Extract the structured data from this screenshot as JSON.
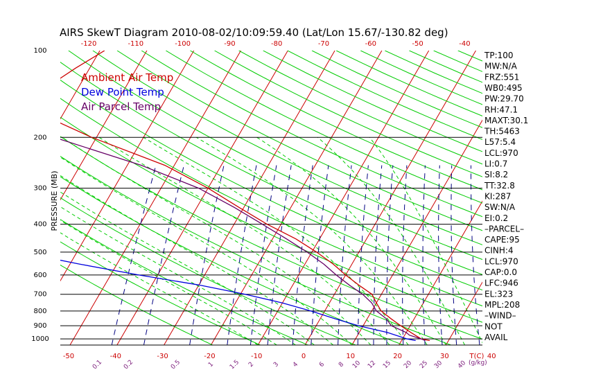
{
  "chart_data": {
    "type": "line",
    "title": "AIRS SkewT Diagram 2010-08-02/10:09:59.40 (Lat/Lon 15.67/-130.82 deg)",
    "ylabel": "PRESSURE (MB)",
    "x_unit_label": "T(C)",
    "mixing_ratio_unit_label": "(g/kg)",
    "y_scale": "log",
    "ylim": [
      1050,
      100
    ],
    "pressure_ticks": [
      100,
      200,
      300,
      400,
      500,
      600,
      700,
      800,
      900,
      1000
    ],
    "top_temp_ticks": [
      -120,
      -110,
      -100,
      -90,
      -80,
      -70,
      -60,
      -50,
      -40
    ],
    "bottom_temp_ticks": [
      -50,
      -40,
      -30,
      -20,
      -10,
      0,
      10,
      20,
      30,
      40
    ],
    "mixing_ratio_ticks": [
      "0.1",
      "0.2",
      "0.5",
      "1",
      "1.5",
      "2",
      "3",
      "4",
      "6",
      "8",
      "10",
      "12",
      "15",
      "20",
      "25",
      "30",
      "40"
    ],
    "legend": [
      {
        "label": "Ambient Air Temp",
        "color": "#cc0000"
      },
      {
        "label": "Dew Point Temp",
        "color": "#0000dd"
      },
      {
        "label": "Air Parcel Temp",
        "color": "#660066"
      }
    ],
    "series": [
      {
        "name": "Ambient Air Temp",
        "color": "#cc0000",
        "points": [
          [
            100,
            -79
          ],
          [
            115,
            -83
          ],
          [
            130,
            -86
          ],
          [
            150,
            -90
          ],
          [
            170,
            -83
          ],
          [
            200,
            -71
          ],
          [
            250,
            -52
          ],
          [
            300,
            -40
          ],
          [
            350,
            -31
          ],
          [
            400,
            -23
          ],
          [
            450,
            -15
          ],
          [
            500,
            -9
          ],
          [
            550,
            -4
          ],
          [
            600,
            0
          ],
          [
            650,
            4
          ],
          [
            700,
            8
          ],
          [
            750,
            10
          ],
          [
            800,
            12
          ],
          [
            850,
            15
          ],
          [
            900,
            18
          ],
          [
            950,
            21
          ],
          [
            1000,
            24
          ],
          [
            1013,
            26
          ]
        ]
      },
      {
        "name": "Dew Point Temp",
        "color": "#0000dd",
        "points": [
          [
            100,
            -130
          ],
          [
            150,
            -132
          ],
          [
            200,
            -124
          ],
          [
            250,
            -111
          ],
          [
            300,
            -106
          ],
          [
            350,
            -105
          ],
          [
            400,
            -104
          ],
          [
            450,
            -87
          ],
          [
            500,
            -72
          ],
          [
            550,
            -58
          ],
          [
            600,
            -44
          ],
          [
            650,
            -30
          ],
          [
            700,
            -19
          ],
          [
            750,
            -10
          ],
          [
            800,
            -3
          ],
          [
            850,
            3
          ],
          [
            900,
            9
          ],
          [
            950,
            16
          ],
          [
            1000,
            21
          ],
          [
            1013,
            23
          ]
        ]
      },
      {
        "name": "Air Parcel Temp",
        "color": "#660066",
        "points": [
          [
            100,
            -131
          ],
          [
            150,
            -106
          ],
          [
            200,
            -79
          ],
          [
            250,
            -57
          ],
          [
            300,
            -42
          ],
          [
            350,
            -32
          ],
          [
            400,
            -24
          ],
          [
            450,
            -17
          ],
          [
            500,
            -11
          ],
          [
            550,
            -6
          ],
          [
            600,
            -2
          ],
          [
            650,
            2
          ],
          [
            700,
            6
          ],
          [
            750,
            9
          ],
          [
            800,
            11
          ],
          [
            850,
            14
          ],
          [
            900,
            16
          ],
          [
            950,
            20
          ],
          [
            970,
            21
          ],
          [
            1000,
            24
          ],
          [
            1013,
            25
          ]
        ]
      }
    ]
  },
  "indices": [
    "TP:100",
    "MW:N/A",
    "FRZ:551",
    "WB0:495",
    "PW:29.70",
    "RH:47.1",
    "MAXT:30.1",
    "TH:5463",
    "L57:5.4",
    "LCL:970",
    "LI:0.7",
    "SI:8.2",
    "TT:32.8",
    "KI:287",
    "SW:N/A",
    "EI:0.2",
    "–PARCEL–",
    "CAPE:95",
    "CINH:4",
    "LCL:970",
    "CAP:0.0",
    "LFC:946",
    "EL:323",
    "MPL:208",
    "–WIND–",
    "NOT",
    "AVAIL"
  ],
  "colors": {
    "isotherm": "#cc0000",
    "dry_adiabat": "#00cc00",
    "moist_adiabat": "#00cc00",
    "mixing_ratio": "#000080",
    "isobar": "#000000"
  }
}
